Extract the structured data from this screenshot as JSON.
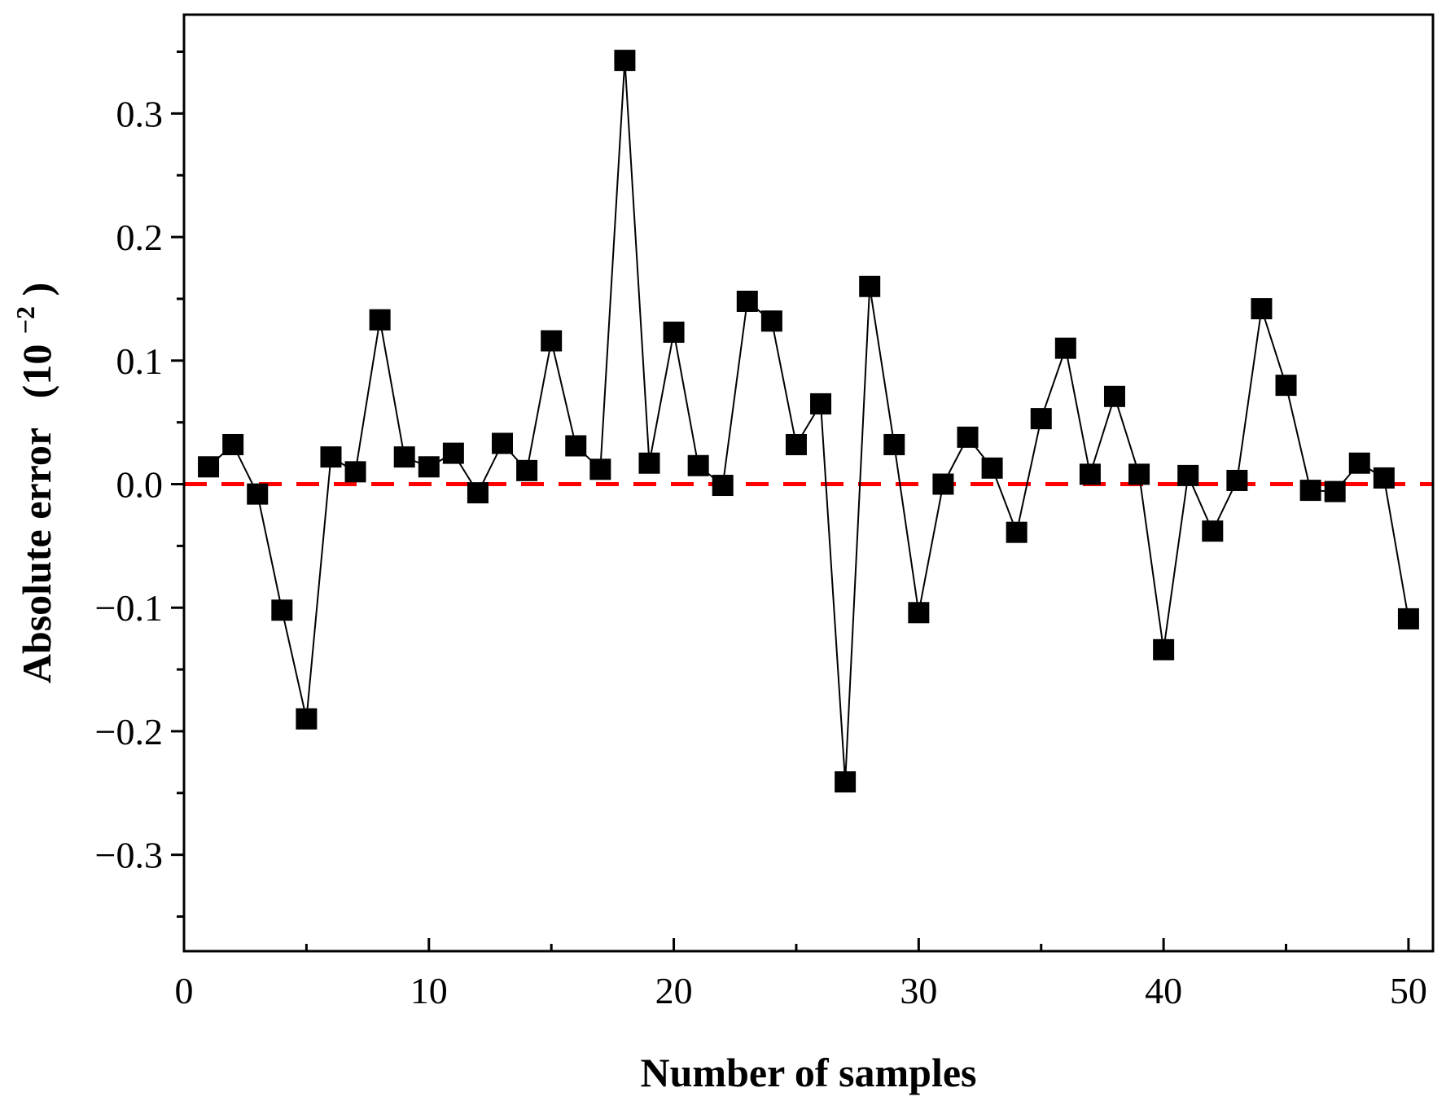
{
  "chart_data": {
    "type": "line",
    "title": "",
    "xlabel": "Number of samples",
    "ylabel": "Absolute error",
    "ylabel_unit_base": "(10",
    "ylabel_unit_exponent": "−2",
    "ylabel_unit_close": ")",
    "xlim": [
      0,
      51
    ],
    "ylim": [
      -0.378,
      0.38
    ],
    "x_ticks": [
      0,
      10,
      20,
      30,
      40,
      50
    ],
    "x_tick_labels": [
      "0",
      "10",
      "20",
      "30",
      "40",
      "50"
    ],
    "x_minor_ticks": [
      5,
      15,
      25,
      35,
      45
    ],
    "y_ticks": [
      -0.3,
      -0.2,
      -0.1,
      0.0,
      0.1,
      0.2,
      0.3
    ],
    "y_tick_labels": [
      "−0.3",
      "−0.2",
      "−0.1",
      "0.0",
      "0.1",
      "0.2",
      "0.3"
    ],
    "y_minor_ticks": [
      -0.35,
      -0.25,
      -0.15,
      -0.05,
      0.05,
      0.15,
      0.25,
      0.35
    ],
    "grid": false,
    "reference_line": {
      "y": 0,
      "color": "#ff0000",
      "style": "dashed"
    },
    "series": [
      {
        "name": "Absolute error",
        "color": "#000000",
        "marker": "square",
        "x": [
          1,
          2,
          3,
          4,
          5,
          6,
          7,
          8,
          9,
          10,
          11,
          12,
          13,
          14,
          15,
          16,
          17,
          18,
          19,
          20,
          21,
          22,
          23,
          24,
          25,
          26,
          27,
          28,
          29,
          30,
          31,
          32,
          33,
          34,
          35,
          36,
          37,
          38,
          39,
          40,
          41,
          42,
          43,
          44,
          45,
          46,
          47,
          48,
          49,
          50
        ],
        "values": [
          0.014,
          0.032,
          -0.008,
          -0.102,
          -0.19,
          0.022,
          0.01,
          0.133,
          0.022,
          0.014,
          0.025,
          -0.007,
          0.033,
          0.011,
          0.116,
          0.031,
          0.012,
          0.343,
          0.017,
          0.123,
          0.015,
          -0.001,
          0.148,
          0.132,
          0.032,
          0.065,
          -0.241,
          0.16,
          0.032,
          -0.104,
          0.0,
          0.038,
          0.013,
          -0.039,
          0.053,
          0.11,
          0.008,
          0.071,
          0.008,
          -0.134,
          0.007,
          -0.038,
          0.003,
          0.142,
          0.08,
          -0.005,
          -0.006,
          0.017,
          0.005,
          -0.109
        ]
      }
    ]
  }
}
